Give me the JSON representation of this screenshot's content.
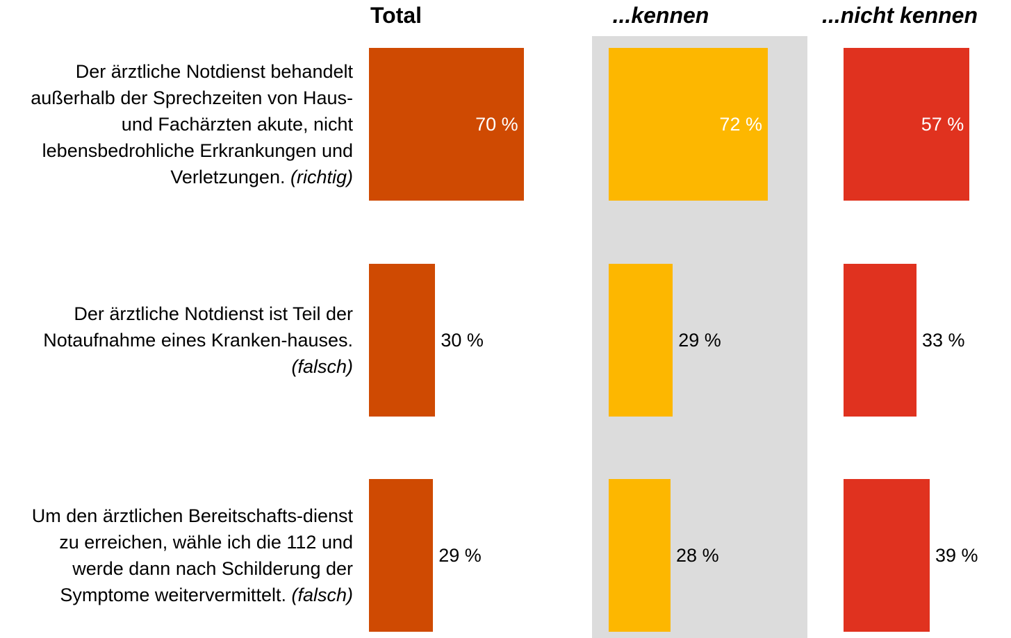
{
  "chart_data": {
    "type": "bar",
    "orientation": "horizontal",
    "categories": [
      "Der ärztliche Notdienst behandelt außerhalb der Sprechzeiten von Haus- und Fachärzten akute, nicht lebensbedrohliche Erkrankungen und Verletzungen.",
      "Der ärztliche Notdienst ist Teil der Notaufnahme eines Kranken-hauses.",
      "Um den ärztlichen Bereitschafts-dienst zu erreichen, wähle ich die 112 und werde dann nach Schilderung der Symptome weitervermittelt."
    ],
    "category_notes": [
      "(richtig)",
      "(falsch)",
      "(falsch)"
    ],
    "xlim": [
      0,
      100
    ],
    "series": [
      {
        "name": "Total",
        "color": "#cf4a02",
        "values": [
          70,
          30,
          29
        ],
        "value_labels": [
          "70 %",
          "30 %",
          "29 %"
        ]
      },
      {
        "name": "...kennen",
        "color": "#fdb700",
        "values": [
          72,
          29,
          28
        ],
        "value_labels": [
          "72 %",
          "29 %",
          "28 %"
        ],
        "highlight": true
      },
      {
        "name": "...nicht kennen",
        "color": "#e0321f",
        "values": [
          57,
          33,
          39
        ],
        "value_labels": [
          "57 %",
          "33 %",
          "39 %"
        ]
      }
    ]
  }
}
